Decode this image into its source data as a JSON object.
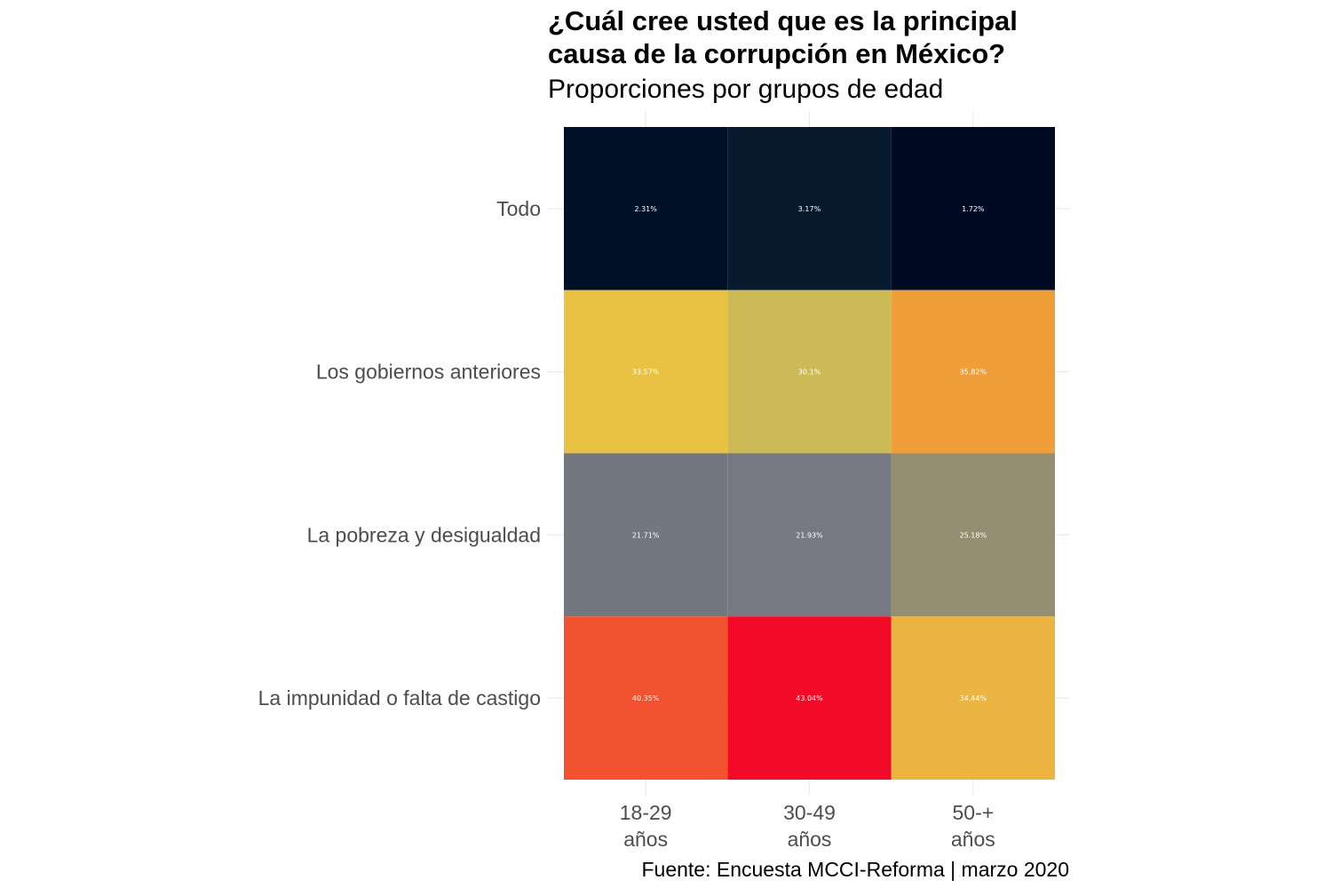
{
  "chart_data": {
    "type": "heatmap",
    "title_lines": [
      "¿Cuál cree usted que es la principal",
      "causa de la corrupción en México?"
    ],
    "subtitle": "Proporciones por grupos de edad",
    "caption": "Fuente: Encuesta MCCI-Reforma | marzo 2020",
    "x_categories": [
      [
        "18-29",
        "años"
      ],
      [
        "30-49",
        "años"
      ],
      [
        "50-+",
        "años"
      ]
    ],
    "y_categories": [
      "Todo",
      "Los gobiernos anteriores",
      "La pobreza y desigualdad",
      "La impunidad o falta de castigo"
    ],
    "cells": [
      [
        {
          "value": 2.31,
          "label": "2.31%",
          "color": "#001027"
        },
        {
          "value": 3.17,
          "label": "3.17%",
          "color": "#081A2E"
        },
        {
          "value": 1.72,
          "label": "1.72%",
          "color": "#000A22"
        }
      ],
      [
        {
          "value": 33.57,
          "label": "33.57%",
          "color": "#E9C243"
        },
        {
          "value": 30.1,
          "label": "30.1%",
          "color": "#CCBA57"
        },
        {
          "value": 35.82,
          "label": "35.82%",
          "color": "#F09E3A"
        }
      ],
      [
        {
          "value": 21.71,
          "label": "21.71%",
          "color": "#727880"
        },
        {
          "value": 21.93,
          "label": "21.93%",
          "color": "#767981"
        },
        {
          "value": 25.18,
          "label": "25.18%",
          "color": "#968E72"
        }
      ],
      [
        {
          "value": 40.35,
          "label": "40.35%",
          "color": "#F2522F"
        },
        {
          "value": 43.04,
          "label": "43.04%",
          "color": "#F20A28"
        },
        {
          "value": 34.44,
          "label": "34.44%",
          "color": "#ECB441"
        }
      ]
    ],
    "grid": true,
    "legend": "none"
  }
}
